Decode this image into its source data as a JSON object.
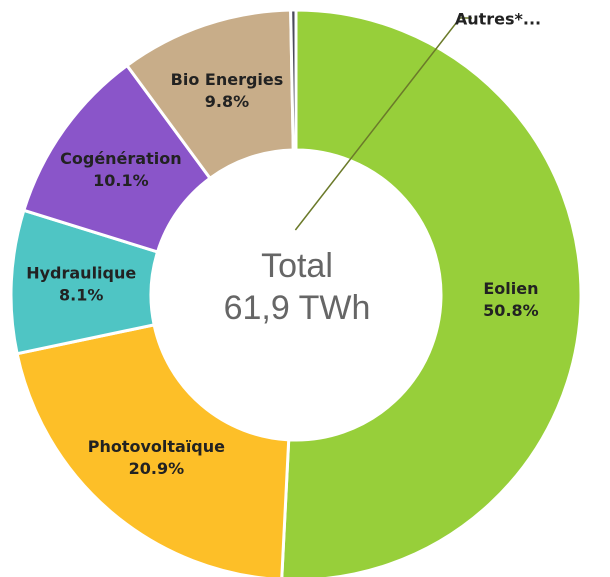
{
  "chart_data": {
    "type": "donut",
    "center_text": [
      "Total",
      "61,9 TWh"
    ],
    "categories": [
      "Eolien",
      "Photovoltaïque",
      "Hydraulique",
      "Cogénération",
      "Bio Energies",
      "Autres*..."
    ],
    "values": [
      50.8,
      20.9,
      8.1,
      10.1,
      9.8,
      0.3
    ],
    "value_labels": [
      "50.8%",
      "20.9%",
      "8.1%",
      "10.1%",
      "9.8%",
      null
    ],
    "colors": [
      "#97cf3a",
      "#fdbf28",
      "#4fc5c4",
      "#8a55c9",
      "#c8ad89",
      "#4a4a5a"
    ]
  }
}
